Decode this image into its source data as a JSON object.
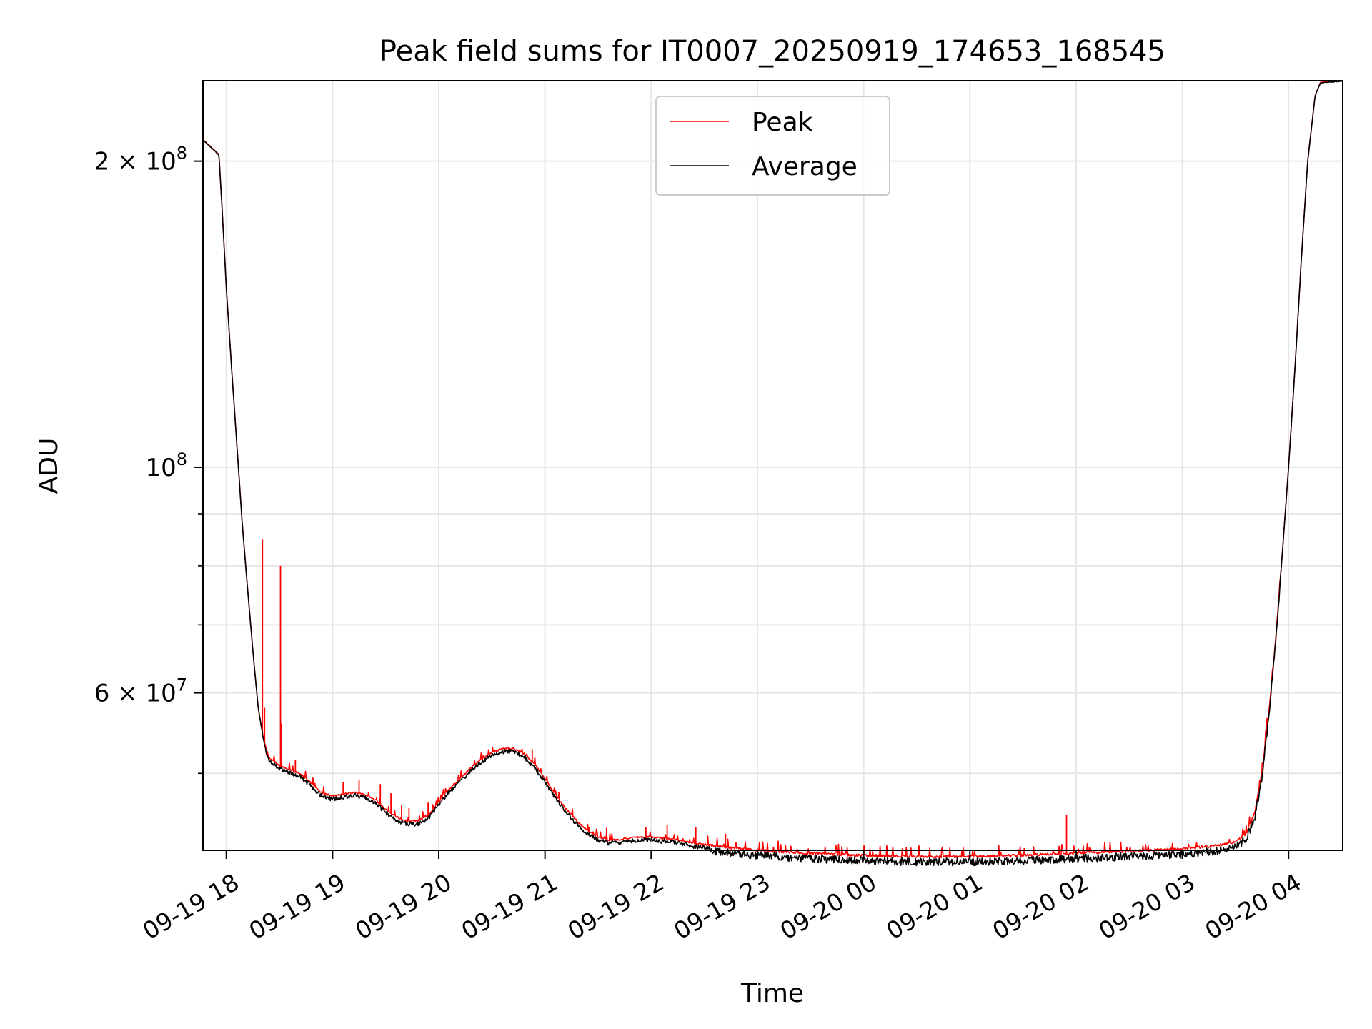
{
  "chart_data": {
    "type": "line",
    "title": "Peak field sums for IT0007_20250919_174653_168545",
    "xlabel": "Time",
    "ylabel": "ADU",
    "yscale": "log",
    "ylim": [
      42000000,
      240000000
    ],
    "xlim_hours": [
      17.78,
      28.51
    ],
    "grid": true,
    "legend_position": "upper center",
    "x_ticks": [
      {
        "hour": 18,
        "label": "09-19 18"
      },
      {
        "hour": 19,
        "label": "09-19 19"
      },
      {
        "hour": 20,
        "label": "09-19 20"
      },
      {
        "hour": 21,
        "label": "09-19 21"
      },
      {
        "hour": 22,
        "label": "09-19 22"
      },
      {
        "hour": 23,
        "label": "09-19 23"
      },
      {
        "hour": 24,
        "label": "09-20 00"
      },
      {
        "hour": 25,
        "label": "09-20 01"
      },
      {
        "hour": 26,
        "label": "09-20 02"
      },
      {
        "hour": 27,
        "label": "09-20 03"
      },
      {
        "hour": 28,
        "label": "09-20 04"
      }
    ],
    "y_major_ticks": [
      {
        "value": 100000000,
        "base": "10",
        "exp": "8",
        "coef": ""
      },
      {
        "value": 200000000,
        "base": "10",
        "exp": "8",
        "coef": "2 × "
      },
      {
        "value": 60000000,
        "base": "10",
        "exp": "7",
        "coef": "6 × "
      }
    ],
    "y_minor_values": [
      50000000,
      70000000,
      80000000,
      90000000
    ],
    "series": [
      {
        "name": "Peak",
        "color": "#ff0000"
      },
      {
        "name": "Average",
        "color": "#000000"
      }
    ],
    "curve": [
      [
        17.78,
        210000000
      ],
      [
        17.93,
        203000000
      ],
      [
        17.96,
        180000000
      ],
      [
        18.0,
        150000000
      ],
      [
        18.05,
        125000000
      ],
      [
        18.1,
        105000000
      ],
      [
        18.15,
        88000000
      ],
      [
        18.2,
        76000000
      ],
      [
        18.25,
        66000000
      ],
      [
        18.3,
        58000000
      ],
      [
        18.35,
        54000000
      ],
      [
        18.4,
        51700000
      ],
      [
        18.5,
        50800000
      ],
      [
        18.6,
        50300000
      ],
      [
        18.7,
        49800000
      ],
      [
        18.8,
        48800000
      ],
      [
        18.9,
        47700000
      ],
      [
        19.0,
        47400000
      ],
      [
        19.1,
        47600000
      ],
      [
        19.2,
        47800000
      ],
      [
        19.3,
        47600000
      ],
      [
        19.4,
        47000000
      ],
      [
        19.5,
        46000000
      ],
      [
        19.6,
        45200000
      ],
      [
        19.7,
        44800000
      ],
      [
        19.8,
        44800000
      ],
      [
        19.9,
        45300000
      ],
      [
        20.0,
        46800000
      ],
      [
        20.1,
        48200000
      ],
      [
        20.2,
        49300000
      ],
      [
        20.3,
        50500000
      ],
      [
        20.4,
        51500000
      ],
      [
        20.5,
        52300000
      ],
      [
        20.6,
        52800000
      ],
      [
        20.7,
        52800000
      ],
      [
        20.8,
        52200000
      ],
      [
        20.9,
        51000000
      ],
      [
        21.0,
        49300000
      ],
      [
        21.1,
        47500000
      ],
      [
        21.2,
        46000000
      ],
      [
        21.3,
        44800000
      ],
      [
        21.4,
        43800000
      ],
      [
        21.5,
        43200000
      ],
      [
        21.6,
        42900000
      ],
      [
        21.7,
        42950000
      ],
      [
        21.8,
        43100000
      ],
      [
        21.9,
        43200000
      ],
      [
        22.0,
        43200000
      ],
      [
        22.1,
        43100000
      ],
      [
        22.2,
        43000000
      ],
      [
        22.3,
        42800000
      ],
      [
        22.4,
        42600000
      ],
      [
        22.6,
        42300000
      ],
      [
        22.8,
        42050000
      ],
      [
        23.0,
        41900000
      ],
      [
        23.3,
        41700000
      ],
      [
        23.6,
        41550000
      ],
      [
        24.0,
        41400000
      ],
      [
        24.5,
        41300000
      ],
      [
        25.0,
        41300000
      ],
      [
        25.5,
        41400000
      ],
      [
        26.0,
        41600000
      ],
      [
        26.5,
        41800000
      ],
      [
        27.0,
        42000000
      ],
      [
        27.3,
        42300000
      ],
      [
        27.5,
        42700000
      ],
      [
        27.6,
        43500000
      ],
      [
        27.68,
        45500000
      ],
      [
        27.75,
        50000000
      ],
      [
        27.82,
        58000000
      ],
      [
        27.88,
        68000000
      ],
      [
        27.94,
        82000000
      ],
      [
        28.0,
        100000000
      ],
      [
        28.06,
        125000000
      ],
      [
        28.12,
        160000000
      ],
      [
        28.18,
        200000000
      ],
      [
        28.25,
        232000000
      ],
      [
        28.3,
        239000000
      ],
      [
        28.51,
        240000000
      ]
    ],
    "peak_spikes": [
      [
        18.34,
        85000000
      ],
      [
        18.36,
        58000000
      ],
      [
        18.51,
        80000000
      ],
      [
        18.52,
        56000000
      ],
      [
        18.65,
        51500000
      ],
      [
        19.1,
        49000000
      ],
      [
        19.25,
        49200000
      ],
      [
        19.45,
        48800000
      ],
      [
        19.55,
        47800000
      ],
      [
        19.65,
        46500000
      ],
      [
        19.72,
        46200000
      ],
      [
        19.9,
        46800000
      ],
      [
        20.88,
        52800000
      ],
      [
        21.58,
        44200000
      ],
      [
        21.95,
        44300000
      ],
      [
        22.15,
        44500000
      ],
      [
        22.42,
        44300000
      ],
      [
        22.7,
        43600000
      ],
      [
        25.91,
        45500000
      ]
    ]
  }
}
